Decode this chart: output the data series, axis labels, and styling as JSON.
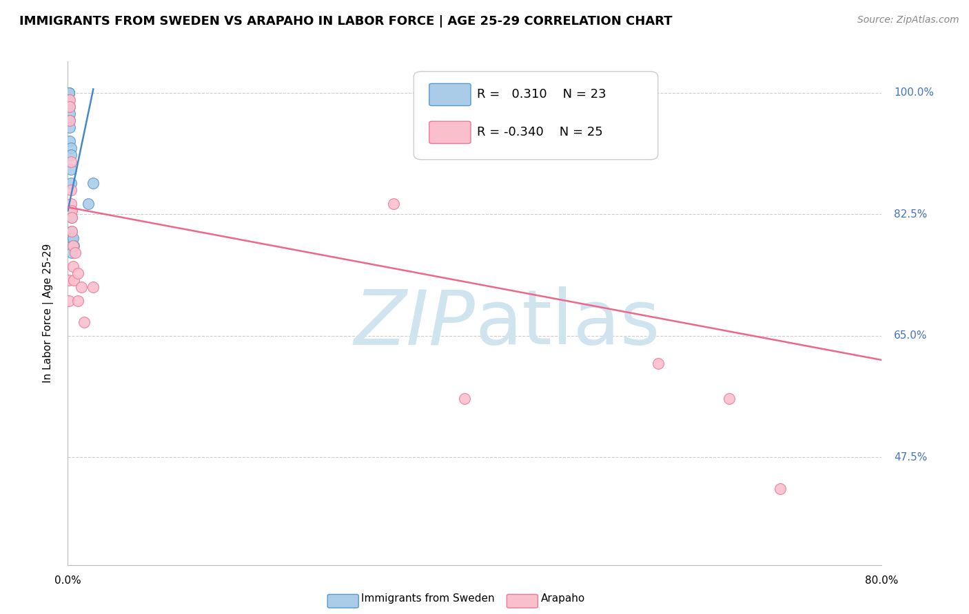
{
  "title": "IMMIGRANTS FROM SWEDEN VS ARAPAHO IN LABOR FORCE | AGE 25-29 CORRELATION CHART",
  "source": "Source: ZipAtlas.com",
  "ylabel": "In Labor Force | Age 25-29",
  "xmin": 0.0,
  "xmax": 0.8,
  "ymin": 0.32,
  "ymax": 1.045,
  "yticks": [
    1.0,
    0.825,
    0.65,
    0.475
  ],
  "ytick_labels": [
    "100.0%",
    "82.5%",
    "65.0%",
    "47.5%"
  ],
  "blue_R": 0.31,
  "blue_N": 23,
  "pink_R": -0.34,
  "pink_N": 25,
  "blue_label": "Immigrants from Sweden",
  "pink_label": "Arapaho",
  "blue_color": "#aacce8",
  "pink_color": "#f9c0cc",
  "blue_edge_color": "#5599cc",
  "pink_edge_color": "#ee7799",
  "blue_line_color": "#4488cc",
  "pink_line_color": "#ee6688",
  "watermark_color": "#d0e4f0",
  "blue_scatter_x": [
    0.001,
    0.001,
    0.001,
    0.001,
    0.001,
    0.002,
    0.002,
    0.002,
    0.002,
    0.002,
    0.003,
    0.003,
    0.003,
    0.003,
    0.003,
    0.004,
    0.004,
    0.004,
    0.004,
    0.005,
    0.006,
    0.02,
    0.025
  ],
  "blue_scatter_y": [
    1.0,
    1.0,
    1.0,
    1.0,
    0.99,
    0.98,
    0.97,
    0.96,
    0.95,
    0.93,
    0.92,
    0.91,
    0.89,
    0.87,
    0.83,
    0.82,
    0.8,
    0.79,
    0.77,
    0.79,
    0.78,
    0.84,
    0.87
  ],
  "pink_scatter_x": [
    0.001,
    0.001,
    0.002,
    0.002,
    0.002,
    0.003,
    0.003,
    0.003,
    0.004,
    0.004,
    0.004,
    0.005,
    0.005,
    0.006,
    0.007,
    0.01,
    0.01,
    0.013,
    0.016,
    0.025,
    0.32,
    0.39,
    0.58,
    0.65,
    0.7
  ],
  "pink_scatter_y": [
    0.73,
    0.7,
    0.99,
    0.98,
    0.96,
    0.9,
    0.86,
    0.84,
    0.83,
    0.82,
    0.8,
    0.78,
    0.75,
    0.73,
    0.77,
    0.74,
    0.7,
    0.72,
    0.67,
    0.72,
    0.84,
    0.56,
    0.61,
    0.56,
    0.43
  ],
  "blue_trend_x": [
    0.0,
    0.025
  ],
  "blue_trend_y": [
    0.83,
    1.005
  ],
  "pink_trend_x": [
    0.0,
    0.8
  ],
  "pink_trend_y": [
    0.835,
    0.615
  ],
  "grid_color": "#cccccc",
  "title_fontsize": 13,
  "axis_label_fontsize": 11,
  "tick_fontsize": 11,
  "legend_fontsize": 13,
  "source_fontsize": 10,
  "xtick_positions": [
    0.0,
    0.1,
    0.2,
    0.3,
    0.4,
    0.5,
    0.6,
    0.7,
    0.8
  ]
}
